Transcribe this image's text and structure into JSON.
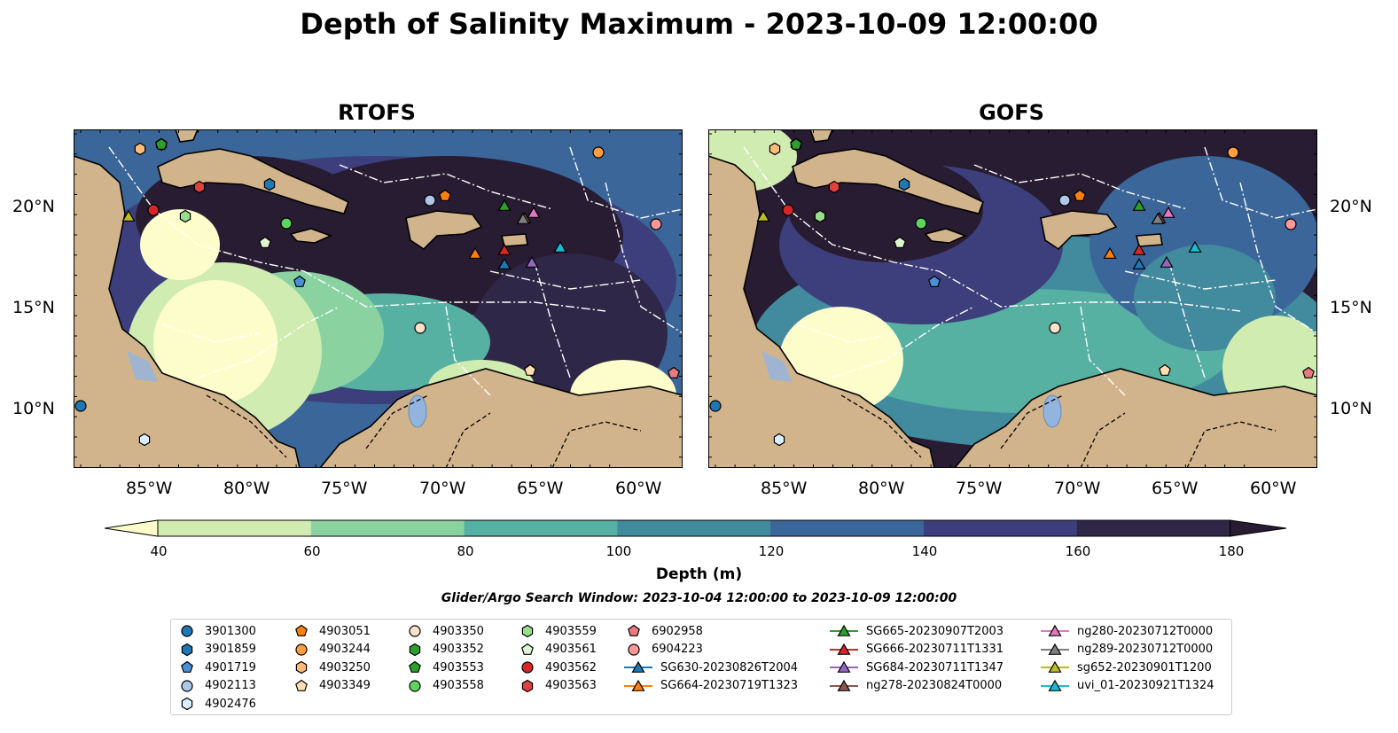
{
  "title": "Depth of Salinity Maximum - 2023-10-09 12:00:00",
  "panels": [
    {
      "title": "RTOFS"
    },
    {
      "title": "GOFS"
    }
  ],
  "lon_labels": [
    "85°W",
    "80°W",
    "75°W",
    "70°W",
    "65°W",
    "60°W"
  ],
  "lat_labels": [
    "20°N",
    "15°N",
    "10°N"
  ],
  "colorbar": {
    "label": "Depth (m)",
    "ticks": [
      "40",
      "60",
      "80",
      "100",
      "120",
      "140",
      "160",
      "180"
    ],
    "colors": [
      "#fdfdcc",
      "#d1ecb1",
      "#8ad3a1",
      "#56b1a2",
      "#428a9e",
      "#3b669a",
      "#3c3f7c",
      "#2f2747",
      "#271c32"
    ]
  },
  "search_window": "Glider/Argo Search Window: 2023-10-04 12:00:00 to 2023-10-09 12:00:00",
  "legend": [
    {
      "label": "3901300",
      "marker": "circle",
      "color": "#1f77b4"
    },
    {
      "label": "3901859",
      "marker": "hexagon",
      "color": "#1f77b4"
    },
    {
      "label": "4901719",
      "marker": "pentagon",
      "color": "#4a90d9"
    },
    {
      "label": "4902113",
      "marker": "circle",
      "color": "#aec7e8"
    },
    {
      "label": "4902476",
      "marker": "hexagon",
      "color": "#dbeeff"
    },
    {
      "label": "4903051",
      "marker": "pentagon",
      "color": "#ff7f0e"
    },
    {
      "label": "4903244",
      "marker": "circle",
      "color": "#ff9f40"
    },
    {
      "label": "4903250",
      "marker": "hexagon",
      "color": "#ffbb78"
    },
    {
      "label": "4903349",
      "marker": "pentagon",
      "color": "#ffdfb0"
    },
    {
      "label": "4903350",
      "marker": "circle",
      "color": "#fde0c8"
    },
    {
      "label": "4903352",
      "marker": "hexagon",
      "color": "#2ca02c"
    },
    {
      "label": "4903553",
      "marker": "pentagon",
      "color": "#2ca02c"
    },
    {
      "label": "4903558",
      "marker": "circle",
      "color": "#5fd35f"
    },
    {
      "label": "4903559",
      "marker": "hexagon",
      "color": "#98df8a"
    },
    {
      "label": "4903561",
      "marker": "pentagon",
      "color": "#dff5d0"
    },
    {
      "label": "4903562",
      "marker": "circle",
      "color": "#d62728"
    },
    {
      "label": "4903563",
      "marker": "hexagon",
      "color": "#e04040"
    },
    {
      "label": "6902958",
      "marker": "pentagon",
      "color": "#e87a80"
    },
    {
      "label": "6904223",
      "marker": "circle",
      "color": "#ff9896"
    },
    {
      "label": "SG630-20230826T2004",
      "marker": "triangle-line",
      "color": "#1f77b4"
    },
    {
      "label": "SG664-20230719T1323",
      "marker": "triangle-line",
      "color": "#ff7f0e"
    },
    {
      "label": "SG665-20230907T2003",
      "marker": "triangle-line",
      "color": "#2ca02c"
    },
    {
      "label": "SG666-20230711T1331",
      "marker": "triangle-line",
      "color": "#d62728"
    },
    {
      "label": "SG684-20230711T1347",
      "marker": "triangle-line",
      "color": "#9467bd"
    },
    {
      "label": "ng278-20230824T0000",
      "marker": "triangle-line",
      "color": "#8c564b"
    },
    {
      "label": "ng280-20230712T0000",
      "marker": "triangle-line",
      "color": "#e377c2"
    },
    {
      "label": "ng289-20230712T0000",
      "marker": "triangle-line",
      "color": "#7f7f7f"
    },
    {
      "label": "sg652-20230901T1200",
      "marker": "triangle-line",
      "color": "#bcbd22"
    },
    {
      "label": "uvi_01-20230921T1324",
      "marker": "triangle-line",
      "color": "#17becf"
    }
  ],
  "map_colors": {
    "land": "#d2b48c",
    "lake": "#94b4e0",
    "boundary": "#ffffff"
  }
}
